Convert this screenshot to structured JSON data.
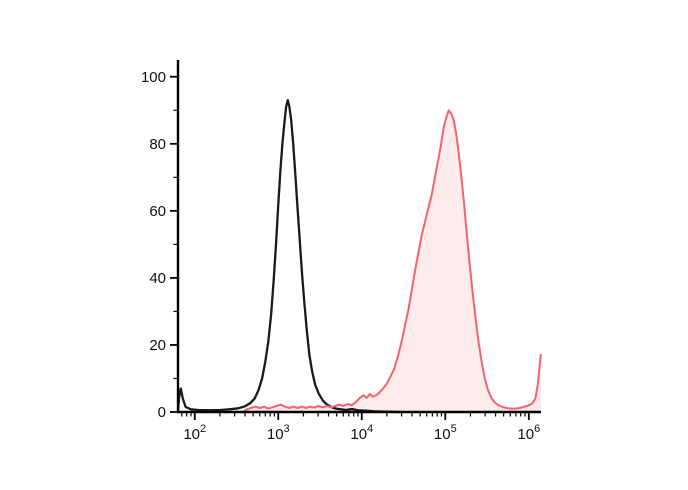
{
  "figure": {
    "background": "#ffffff",
    "axis_color": "#000000"
  },
  "chart_data": {
    "type": "area",
    "description": "Flow cytometry fluorescence intensity histogram with two overlaid populations",
    "title": "",
    "xlabel": "",
    "ylabel": "",
    "x_scale": "log",
    "x_range": [
      63,
      1400000
    ],
    "y_range": [
      0,
      105
    ],
    "grid": false,
    "legend": "none",
    "x_ticks": [
      {
        "base": "10",
        "exp": "2",
        "value": 100
      },
      {
        "base": "10",
        "exp": "3",
        "value": 1000
      },
      {
        "base": "10",
        "exp": "4",
        "value": 10000
      },
      {
        "base": "10",
        "exp": "5",
        "value": 100000
      },
      {
        "base": "10",
        "exp": "6",
        "value": 1000000
      }
    ],
    "y_ticks": [
      0,
      20,
      40,
      60,
      80,
      100
    ],
    "y_minor_step": 10,
    "series": [
      {
        "name": "black-open-histogram",
        "color": "#1a1a1a",
        "fill": "none",
        "width": 2.3,
        "peak_x": 1300,
        "peak_y": 93,
        "points": [
          [
            63,
            0
          ],
          [
            65,
            4.5
          ],
          [
            68,
            7
          ],
          [
            72,
            4
          ],
          [
            78,
            1.5
          ],
          [
            90,
            0.8
          ],
          [
            110,
            0.6
          ],
          [
            150,
            0.5
          ],
          [
            200,
            0.6
          ],
          [
            260,
            0.8
          ],
          [
            330,
            1.1
          ],
          [
            400,
            1.7
          ],
          [
            460,
            2.6
          ],
          [
            520,
            4
          ],
          [
            580,
            6.5
          ],
          [
            640,
            10
          ],
          [
            700,
            15
          ],
          [
            760,
            21
          ],
          [
            820,
            29
          ],
          [
            880,
            39
          ],
          [
            940,
            50
          ],
          [
            1000,
            62
          ],
          [
            1060,
            72
          ],
          [
            1120,
            80
          ],
          [
            1180,
            86
          ],
          [
            1240,
            91
          ],
          [
            1300,
            93
          ],
          [
            1360,
            91
          ],
          [
            1430,
            87
          ],
          [
            1510,
            80
          ],
          [
            1600,
            71
          ],
          [
            1700,
            61
          ],
          [
            1810,
            51
          ],
          [
            1930,
            41
          ],
          [
            2060,
            32
          ],
          [
            2200,
            24
          ],
          [
            2360,
            17
          ],
          [
            2550,
            12
          ],
          [
            2780,
            8
          ],
          [
            3050,
            5.5
          ],
          [
            3400,
            3.5
          ],
          [
            3800,
            2.3
          ],
          [
            4300,
            1.5
          ],
          [
            4900,
            1
          ],
          [
            5600,
            0.8
          ],
          [
            6500,
            0.6
          ],
          [
            7600,
            0.9
          ],
          [
            9000,
            0.5
          ],
          [
            11000,
            0.4
          ],
          [
            14000,
            0.2
          ],
          [
            20000,
            0.1
          ],
          [
            30000,
            0
          ]
        ]
      },
      {
        "name": "red-filled-histogram",
        "color": "#f0646f",
        "fill": "#fdeaea",
        "width": 2,
        "peak_x": 110000,
        "peak_y": 90,
        "edge_spike_y": 17,
        "points": [
          [
            380,
            0
          ],
          [
            420,
            0.8
          ],
          [
            470,
            1.2
          ],
          [
            530,
            1.6
          ],
          [
            600,
            1.2
          ],
          [
            680,
            1.6
          ],
          [
            760,
            1
          ],
          [
            850,
            1.4
          ],
          [
            950,
            1.8
          ],
          [
            1070,
            2.2
          ],
          [
            1200,
            1.6
          ],
          [
            1350,
            1.2
          ],
          [
            1520,
            1.6
          ],
          [
            1700,
            1.2
          ],
          [
            1900,
            1.6
          ],
          [
            2150,
            1.2
          ],
          [
            2400,
            1.6
          ],
          [
            2700,
            1.3
          ],
          [
            3000,
            1.8
          ],
          [
            3400,
            1.4
          ],
          [
            3800,
            1.8
          ],
          [
            4300,
            1.4
          ],
          [
            4800,
            1.8
          ],
          [
            5400,
            2.2
          ],
          [
            6000,
            1.8
          ],
          [
            6800,
            2.4
          ],
          [
            7600,
            2
          ],
          [
            8500,
            3
          ],
          [
            9500,
            4.2
          ],
          [
            10500,
            5
          ],
          [
            11500,
            4.2
          ],
          [
            12500,
            5.4
          ],
          [
            13500,
            4.6
          ],
          [
            15000,
            5
          ],
          [
            16500,
            6
          ],
          [
            18000,
            7
          ],
          [
            20000,
            8.5
          ],
          [
            22000,
            10.5
          ],
          [
            24500,
            13
          ],
          [
            27000,
            16.5
          ],
          [
            30000,
            21
          ],
          [
            33000,
            26
          ],
          [
            36500,
            31
          ],
          [
            40000,
            37
          ],
          [
            44000,
            43
          ],
          [
            48000,
            48
          ],
          [
            52500,
            53
          ],
          [
            57500,
            57
          ],
          [
            63000,
            61
          ],
          [
            69000,
            65
          ],
          [
            75000,
            70
          ],
          [
            82000,
            75
          ],
          [
            89000,
            80
          ],
          [
            96000,
            85
          ],
          [
            103000,
            88
          ],
          [
            110000,
            90
          ],
          [
            118000,
            89
          ],
          [
            126000,
            87
          ],
          [
            135000,
            83
          ],
          [
            145000,
            77
          ],
          [
            156000,
            70
          ],
          [
            168000,
            62
          ],
          [
            181000,
            53
          ],
          [
            196000,
            44
          ],
          [
            212000,
            36
          ],
          [
            230000,
            28
          ],
          [
            250000,
            21
          ],
          [
            272000,
            15
          ],
          [
            297000,
            10
          ],
          [
            325000,
            6.5
          ],
          [
            357000,
            4.2
          ],
          [
            393000,
            2.8
          ],
          [
            435000,
            2
          ],
          [
            484000,
            1.5
          ],
          [
            540000,
            1.2
          ],
          [
            606000,
            1
          ],
          [
            684000,
            1
          ],
          [
            777000,
            1.2
          ],
          [
            890000,
            1.6
          ],
          [
            1000000,
            2
          ],
          [
            1100000,
            2.6
          ],
          [
            1200000,
            4
          ],
          [
            1280000,
            8
          ],
          [
            1340000,
            13
          ],
          [
            1390000,
            17
          ],
          [
            1400000,
            17
          ]
        ]
      }
    ]
  }
}
